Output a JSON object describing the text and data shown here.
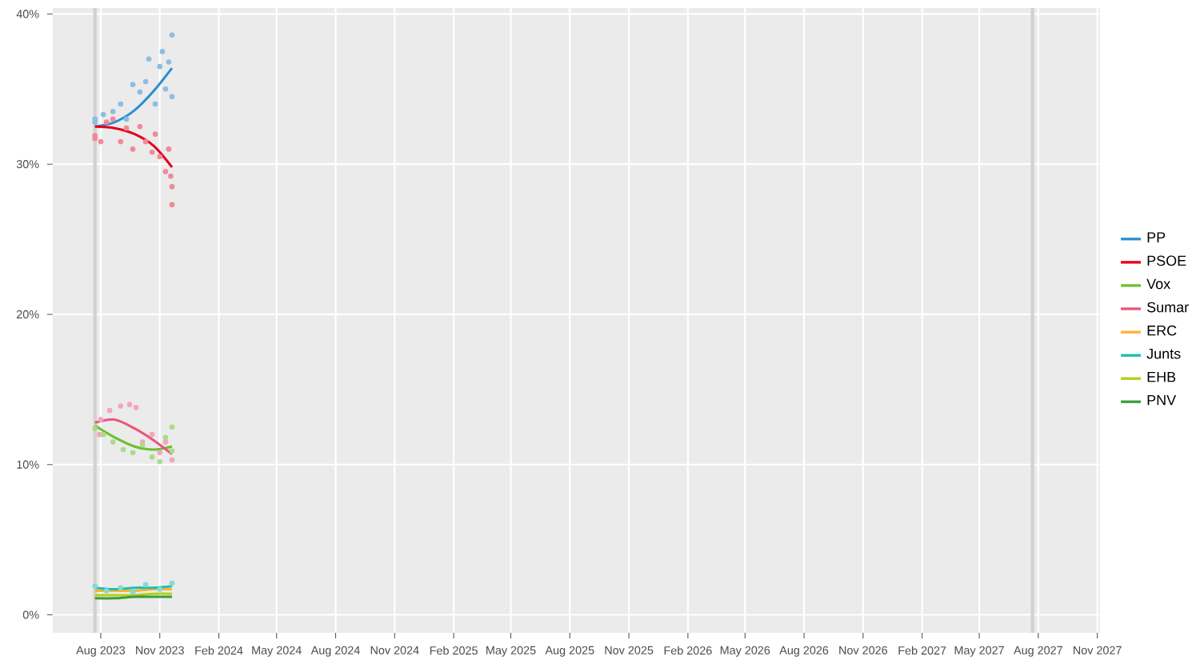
{
  "chart_data": {
    "type": "line",
    "xlim": [
      "2023-05-18",
      "2027-11-05"
    ],
    "ylim": [
      -1.2,
      40.4
    ],
    "xticks": [
      {
        "value": "2023-08-01",
        "label": "Aug 2023"
      },
      {
        "value": "2023-11-01",
        "label": "Nov 2023"
      },
      {
        "value": "2024-02-01",
        "label": "Feb 2024"
      },
      {
        "value": "2024-05-01",
        "label": "May 2024"
      },
      {
        "value": "2024-08-01",
        "label": "Aug 2024"
      },
      {
        "value": "2024-11-01",
        "label": "Nov 2024"
      },
      {
        "value": "2025-02-01",
        "label": "Feb 2025"
      },
      {
        "value": "2025-05-01",
        "label": "May 2025"
      },
      {
        "value": "2025-08-01",
        "label": "Aug 2025"
      },
      {
        "value": "2025-11-01",
        "label": "Nov 2025"
      },
      {
        "value": "2026-02-01",
        "label": "Feb 2026"
      },
      {
        "value": "2026-05-01",
        "label": "May 2026"
      },
      {
        "value": "2026-08-01",
        "label": "Aug 2026"
      },
      {
        "value": "2026-11-01",
        "label": "Nov 2026"
      },
      {
        "value": "2027-02-01",
        "label": "Feb 2027"
      },
      {
        "value": "2027-05-01",
        "label": "May 2027"
      },
      {
        "value": "2027-08-01",
        "label": "Aug 2027"
      },
      {
        "value": "2027-11-01",
        "label": "Nov 2027"
      }
    ],
    "yticks": [
      {
        "value": 0,
        "label": "0%"
      },
      {
        "value": 10,
        "label": "10%"
      },
      {
        "value": 20,
        "label": "20%"
      },
      {
        "value": 30,
        "label": "30%"
      },
      {
        "value": 40,
        "label": "40%"
      }
    ],
    "grid": true,
    "legend": "right",
    "marker": "none",
    "line_style": "solid",
    "ref_lines": [
      {
        "axis": "x",
        "value": "2023-07-23",
        "color": "#d2d2d2"
      },
      {
        "axis": "x",
        "value": "2027-07-23",
        "color": "#d2d2d2"
      }
    ],
    "series": [
      {
        "type": "scatter",
        "color": "#8dbde3",
        "x": [
          "2023-07-23",
          "2023-07-23",
          "2023-08-05",
          "2023-08-20",
          "2023-09-01",
          "2023-09-10",
          "2023-09-20",
          "2023-10-01",
          "2023-10-10",
          "2023-10-15",
          "2023-10-25",
          "2023-11-01",
          "2023-11-05",
          "2023-11-10",
          "2023-11-15",
          "2023-11-20",
          "2023-11-20"
        ],
        "values": [
          33.0,
          32.8,
          33.3,
          33.5,
          34.0,
          33.0,
          35.3,
          34.8,
          35.5,
          37.0,
          34.0,
          36.5,
          37.5,
          35.0,
          36.8,
          38.6,
          34.5
        ]
      },
      {
        "type": "scatter",
        "color": "#f08a98",
        "x": [
          "2023-07-23",
          "2023-07-23",
          "2023-08-01",
          "2023-08-10",
          "2023-08-20",
          "2023-09-01",
          "2023-09-10",
          "2023-09-20",
          "2023-10-01",
          "2023-10-10",
          "2023-10-20",
          "2023-10-25",
          "2023-11-01",
          "2023-11-10",
          "2023-11-15",
          "2023-11-18",
          "2023-11-20",
          "2023-11-20"
        ],
        "values": [
          31.7,
          31.9,
          31.5,
          32.8,
          33.0,
          31.5,
          32.4,
          31.0,
          32.5,
          31.5,
          30.8,
          32.0,
          30.5,
          29.5,
          31.0,
          29.2,
          28.5,
          27.3
        ]
      },
      {
        "type": "scatter",
        "color": "#f4a6bd",
        "x": [
          "2023-07-30",
          "2023-08-01",
          "2023-08-15",
          "2023-09-01",
          "2023-09-15",
          "2023-09-25",
          "2023-10-05",
          "2023-10-20",
          "2023-11-01",
          "2023-11-10",
          "2023-11-20"
        ],
        "values": [
          12.0,
          13.0,
          13.6,
          13.9,
          14.0,
          13.8,
          11.5,
          12.0,
          10.8,
          11.5,
          10.3
        ]
      },
      {
        "type": "scatter",
        "color": "#add98a",
        "x": [
          "2023-07-23",
          "2023-08-05",
          "2023-08-20",
          "2023-09-05",
          "2023-09-20",
          "2023-10-05",
          "2023-10-20",
          "2023-11-01",
          "2023-11-10",
          "2023-11-20",
          "2023-11-20"
        ],
        "values": [
          12.4,
          12.0,
          11.5,
          11.0,
          10.8,
          11.3,
          10.5,
          10.2,
          11.8,
          12.5,
          10.9
        ]
      },
      {
        "type": "scatter",
        "color": "#86dacf",
        "x": [
          "2023-07-23",
          "2023-08-10",
          "2023-09-01",
          "2023-09-20",
          "2023-10-10",
          "2023-11-01",
          "2023-11-20"
        ],
        "values": [
          1.9,
          1.6,
          1.8,
          1.5,
          2.0,
          1.7,
          2.1
        ]
      },
      {
        "name": "PP",
        "color": "#2a8ed1",
        "x": [
          "2023-07-23",
          "2023-08-23",
          "2023-09-23",
          "2023-10-23",
          "2023-11-20"
        ],
        "values": [
          32.5,
          32.8,
          33.6,
          34.9,
          36.4
        ]
      },
      {
        "name": "PSOE",
        "color": "#e3001b",
        "x": [
          "2023-07-23",
          "2023-08-23",
          "2023-09-23",
          "2023-10-23",
          "2023-11-20"
        ],
        "values": [
          32.5,
          32.4,
          32.0,
          31.2,
          29.8
        ]
      },
      {
        "name": "Vox",
        "color": "#6cbf2c",
        "x": [
          "2023-07-23",
          "2023-08-23",
          "2023-09-23",
          "2023-10-23",
          "2023-11-20"
        ],
        "values": [
          12.6,
          11.8,
          11.2,
          11.0,
          11.2
        ]
      },
      {
        "name": "Sumar",
        "color": "#e8577a",
        "x": [
          "2023-07-23",
          "2023-08-23",
          "2023-09-23",
          "2023-10-23",
          "2023-11-20"
        ],
        "values": [
          12.8,
          13.0,
          12.4,
          11.6,
          10.7
        ]
      },
      {
        "name": "ERC",
        "color": "#ffb232",
        "x": [
          "2023-07-23",
          "2023-08-23",
          "2023-09-23",
          "2023-10-23",
          "2023-11-20"
        ],
        "values": [
          1.6,
          1.6,
          1.6,
          1.7,
          1.7
        ]
      },
      {
        "name": "Junts",
        "color": "#1dbfb0",
        "x": [
          "2023-07-23",
          "2023-08-23",
          "2023-09-23",
          "2023-10-23",
          "2023-11-20"
        ],
        "values": [
          1.8,
          1.7,
          1.8,
          1.8,
          1.9
        ]
      },
      {
        "name": "EHB",
        "color": "#b5cf18",
        "x": [
          "2023-07-23",
          "2023-08-23",
          "2023-09-23",
          "2023-10-23",
          "2023-11-20"
        ],
        "values": [
          1.3,
          1.3,
          1.3,
          1.4,
          1.4
        ]
      },
      {
        "name": "PNV",
        "color": "#3a9d3a",
        "x": [
          "2023-07-23",
          "2023-08-23",
          "2023-09-23",
          "2023-10-23",
          "2023-11-20"
        ],
        "values": [
          1.1,
          1.1,
          1.2,
          1.2,
          1.2
        ]
      }
    ]
  }
}
